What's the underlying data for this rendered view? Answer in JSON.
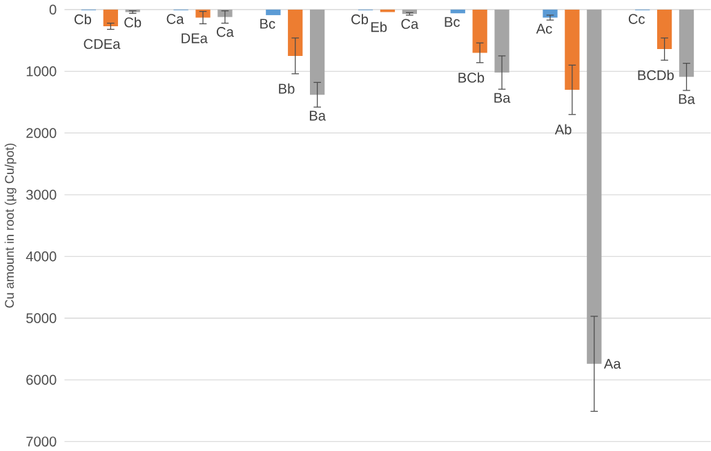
{
  "chart_data": {
    "type": "bar",
    "ylabel": "Cu amount in root (µg Cu/pot)",
    "categories": [
      null,
      null,
      null,
      null,
      null,
      null,
      null
    ],
    "series": [
      {
        "color": "#5b9bd5",
        "values": [
          10,
          10,
          90,
          10,
          60,
          130,
          10
        ],
        "errors": [
          null,
          null,
          null,
          null,
          null,
          40,
          null
        ],
        "value_labels": [
          "Cb",
          "Ca",
          "Bc",
          "Cb",
          "Bc",
          "Ac",
          "Cc"
        ]
      },
      {
        "color": "#ed7d31",
        "values": [
          270,
          130,
          750,
          40,
          700,
          1300,
          640
        ],
        "errors": [
          50,
          100,
          290,
          null,
          160,
          400,
          180
        ],
        "value_labels": [
          "CDEa",
          "DEa",
          "Bb",
          "Eb",
          "BCb",
          "Ab",
          "BCDb"
        ]
      },
      {
        "color": "#a5a5a5",
        "values": [
          40,
          120,
          1380,
          70,
          1020,
          5740,
          1090
        ],
        "errors": [
          20,
          100,
          200,
          20,
          270,
          770,
          220
        ],
        "value_labels": [
          "Cb",
          "Ca",
          "Ba",
          "Ca",
          "Ba",
          "Aa",
          "Ba"
        ]
      }
    ],
    "ylim": [
      7000,
      0
    ],
    "yticks": [
      0,
      1000,
      2000,
      3000,
      4000,
      5000,
      6000,
      7000
    ],
    "grid": "y",
    "tick_labels": "y"
  }
}
